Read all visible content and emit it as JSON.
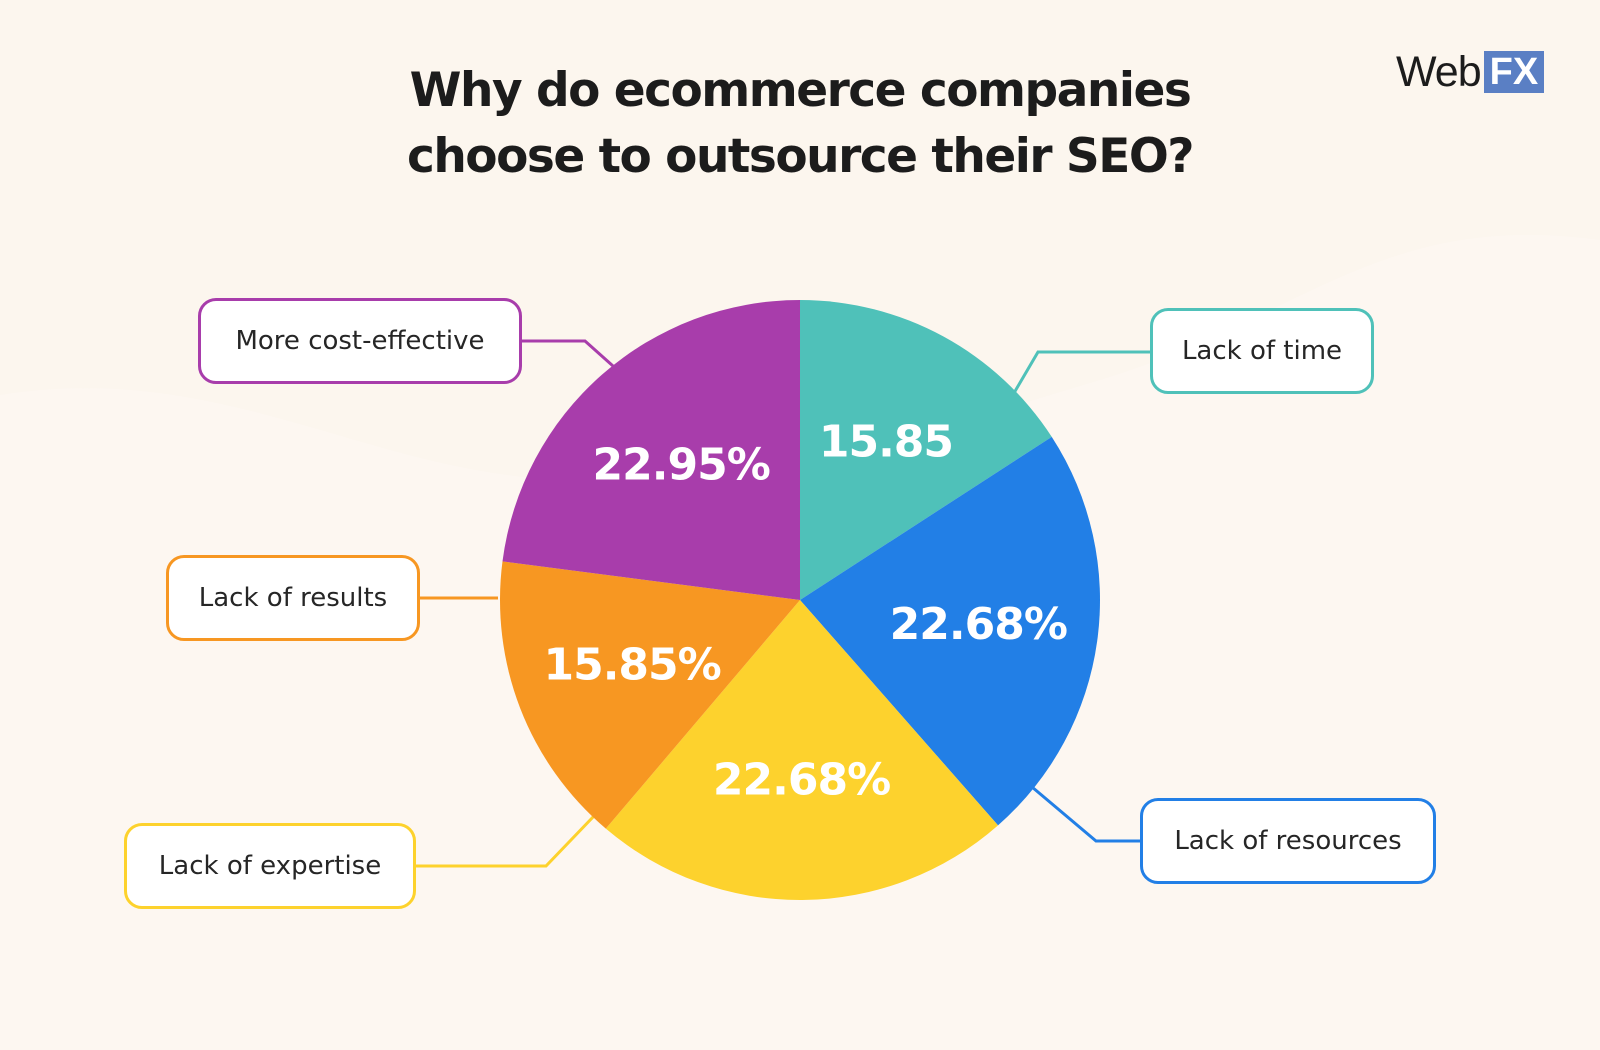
{
  "title_lines": [
    "Why do ecommerce companies",
    "choose to outsource their SEO?"
  ],
  "logo": {
    "text": "Web",
    "badge": "FX",
    "badge_color": "#5a7fc4"
  },
  "background_color": "#fcf6ee",
  "chart_data": {
    "type": "pie",
    "title": "Why do ecommerce companies choose to outsource their SEO?",
    "start_angle_deg": 0,
    "direction": "clockwise",
    "slices": [
      {
        "label": "Lack of time",
        "value": 15.85,
        "display": "15.85",
        "color": "#4fc1b9"
      },
      {
        "label": "Lack of resources",
        "value": 22.68,
        "display": "22.68%",
        "color": "#227fe6"
      },
      {
        "label": "Lack of expertise",
        "value": 22.68,
        "display": "22.68%",
        "color": "#fdd22d"
      },
      {
        "label": "Lack of results",
        "value": 15.85,
        "display": "15.85%",
        "color": "#f79722"
      },
      {
        "label": "More cost-effective",
        "value": 22.95,
        "display": "22.95%",
        "color": "#a83dab"
      }
    ]
  }
}
